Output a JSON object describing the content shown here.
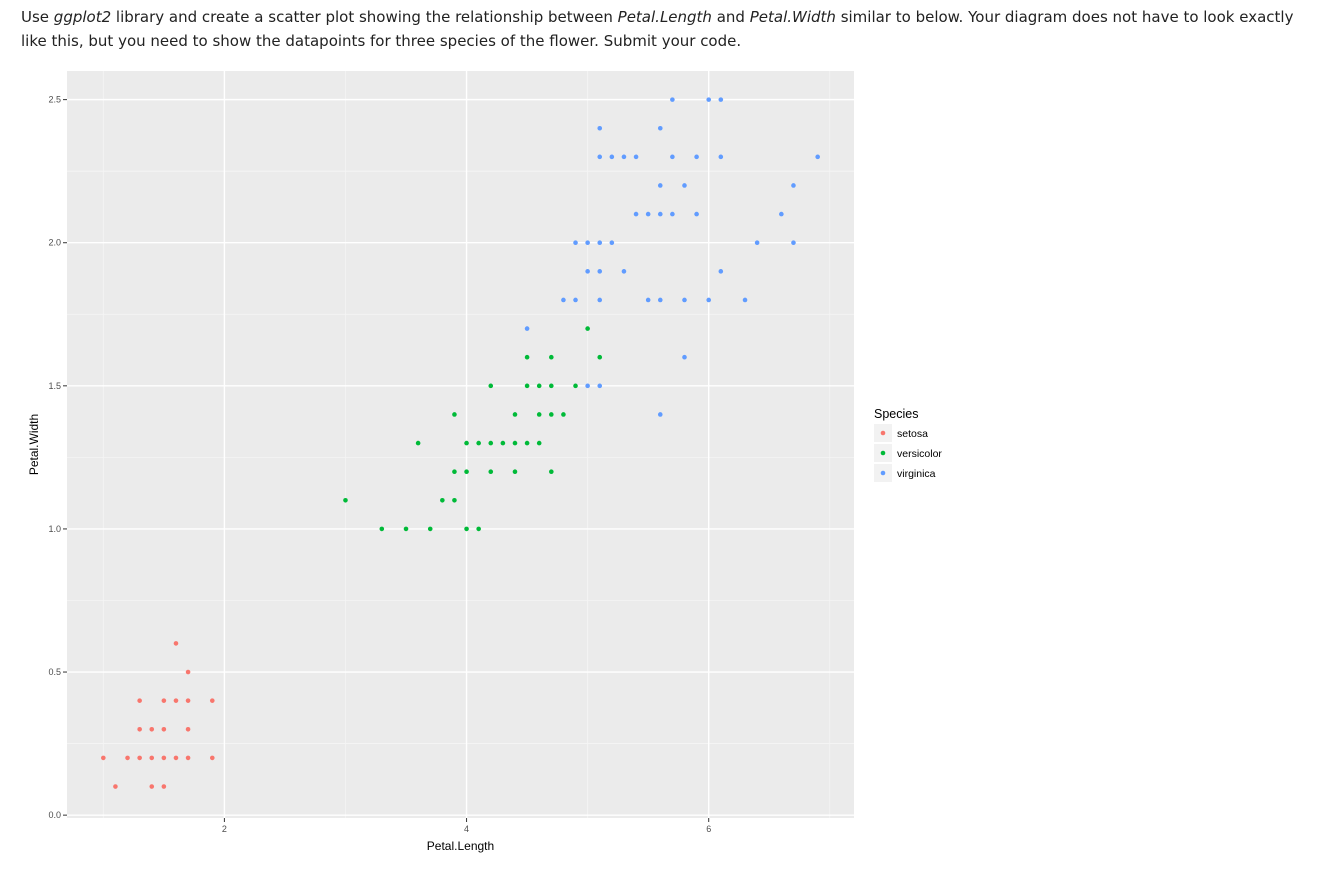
{
  "instruction": {
    "t1": "Use ",
    "t2": "ggplot2",
    "t3": " library and create a scatter plot showing the relationship between ",
    "t4": "Petal.Length",
    "t5": "  and ",
    "t6": "Petal.Width",
    "t7": " similar to below. Your diagram does not have to look exactly like this, but you need to show the datapoints for three species of the flower. Submit your code."
  },
  "chart_data": {
    "type": "scatter",
    "xlabel": "Petal.Length",
    "ylabel": "Petal.Width",
    "xlim": [
      0.7,
      7.2
    ],
    "ylim": [
      -0.01,
      2.6
    ],
    "x_ticks": [
      2,
      4,
      6
    ],
    "y_ticks": [
      0.0,
      0.5,
      1.0,
      1.5,
      2.0,
      2.5
    ],
    "x_tick_labels": [
      "2",
      "4",
      "6"
    ],
    "y_tick_labels": [
      "0.0",
      "0.5",
      "1.0",
      "1.5",
      "2.0",
      "2.5"
    ],
    "grid": true,
    "background": "#ebebeb",
    "legend": {
      "title": "Species",
      "position": "right"
    },
    "series": [
      {
        "name": "setosa",
        "color": "#f8766d",
        "points": [
          [
            1.0,
            0.2
          ],
          [
            1.1,
            0.1
          ],
          [
            1.2,
            0.2
          ],
          [
            1.3,
            0.2
          ],
          [
            1.3,
            0.3
          ],
          [
            1.3,
            0.4
          ],
          [
            1.4,
            0.1
          ],
          [
            1.4,
            0.2
          ],
          [
            1.4,
            0.3
          ],
          [
            1.5,
            0.1
          ],
          [
            1.5,
            0.2
          ],
          [
            1.5,
            0.3
          ],
          [
            1.5,
            0.4
          ],
          [
            1.6,
            0.2
          ],
          [
            1.6,
            0.4
          ],
          [
            1.6,
            0.6
          ],
          [
            1.7,
            0.2
          ],
          [
            1.7,
            0.3
          ],
          [
            1.7,
            0.4
          ],
          [
            1.7,
            0.5
          ],
          [
            1.9,
            0.2
          ],
          [
            1.9,
            0.4
          ]
        ]
      },
      {
        "name": "versicolor",
        "color": "#00ba38",
        "points": [
          [
            3.0,
            1.1
          ],
          [
            3.3,
            1.0
          ],
          [
            3.5,
            1.0
          ],
          [
            3.6,
            1.3
          ],
          [
            3.7,
            1.0
          ],
          [
            3.8,
            1.1
          ],
          [
            3.9,
            1.1
          ],
          [
            3.9,
            1.2
          ],
          [
            3.9,
            1.4
          ],
          [
            4.0,
            1.0
          ],
          [
            4.0,
            1.2
          ],
          [
            4.0,
            1.3
          ],
          [
            4.1,
            1.0
          ],
          [
            4.1,
            1.3
          ],
          [
            4.2,
            1.2
          ],
          [
            4.2,
            1.3
          ],
          [
            4.2,
            1.5
          ],
          [
            4.3,
            1.3
          ],
          [
            4.4,
            1.2
          ],
          [
            4.4,
            1.3
          ],
          [
            4.4,
            1.4
          ],
          [
            4.5,
            1.3
          ],
          [
            4.5,
            1.5
          ],
          [
            4.5,
            1.6
          ],
          [
            4.6,
            1.3
          ],
          [
            4.6,
            1.4
          ],
          [
            4.6,
            1.5
          ],
          [
            4.7,
            1.2
          ],
          [
            4.7,
            1.4
          ],
          [
            4.7,
            1.5
          ],
          [
            4.7,
            1.6
          ],
          [
            4.8,
            1.4
          ],
          [
            4.9,
            1.5
          ],
          [
            5.0,
            1.7
          ],
          [
            5.1,
            1.6
          ]
        ]
      },
      {
        "name": "virginica",
        "color": "#619cff",
        "points": [
          [
            4.5,
            1.7
          ],
          [
            4.8,
            1.8
          ],
          [
            4.9,
            1.8
          ],
          [
            4.9,
            2.0
          ],
          [
            5.0,
            1.5
          ],
          [
            5.0,
            1.9
          ],
          [
            5.0,
            2.0
          ],
          [
            5.1,
            1.5
          ],
          [
            5.1,
            1.8
          ],
          [
            5.1,
            1.9
          ],
          [
            5.1,
            2.0
          ],
          [
            5.1,
            2.3
          ],
          [
            5.1,
            2.4
          ],
          [
            5.2,
            2.0
          ],
          [
            5.2,
            2.3
          ],
          [
            5.3,
            1.9
          ],
          [
            5.3,
            2.3
          ],
          [
            5.4,
            2.1
          ],
          [
            5.4,
            2.3
          ],
          [
            5.5,
            1.8
          ],
          [
            5.5,
            2.1
          ],
          [
            5.6,
            1.4
          ],
          [
            5.6,
            1.8
          ],
          [
            5.6,
            2.1
          ],
          [
            5.6,
            2.2
          ],
          [
            5.6,
            2.4
          ],
          [
            5.7,
            2.1
          ],
          [
            5.7,
            2.3
          ],
          [
            5.7,
            2.5
          ],
          [
            5.8,
            1.6
          ],
          [
            5.8,
            1.8
          ],
          [
            5.8,
            2.2
          ],
          [
            5.9,
            2.1
          ],
          [
            5.9,
            2.3
          ],
          [
            6.0,
            1.8
          ],
          [
            6.0,
            2.5
          ],
          [
            6.1,
            1.9
          ],
          [
            6.1,
            2.3
          ],
          [
            6.1,
            2.5
          ],
          [
            6.3,
            1.8
          ],
          [
            6.4,
            2.0
          ],
          [
            6.6,
            2.1
          ],
          [
            6.7,
            2.0
          ],
          [
            6.7,
            2.2
          ],
          [
            6.9,
            2.3
          ]
        ]
      }
    ]
  }
}
